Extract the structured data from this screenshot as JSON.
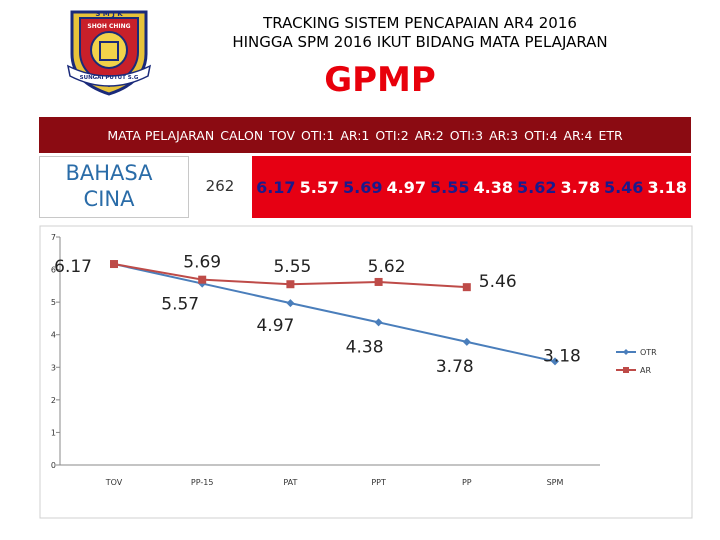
{
  "logo": {
    "top_text": "S M J K",
    "middle_text": "SHOH CHING",
    "bottom_text": "SUNGAI PUTUT S.G"
  },
  "header": {
    "title_line1": "TRACKING SISTEM PENCAPAIAN AR4 2016",
    "title_line2": "HINGGA SPM 2016 IKUT BIDANG MATA PELAJARAN",
    "subtitle": "GPMP"
  },
  "table": {
    "columns": [
      "MATA PELAJARAN",
      "CALON",
      "TOV",
      "OTI:1",
      "AR:1",
      "OTI:2",
      "AR:2",
      "OTI:3",
      "AR:3",
      "OTI:4",
      "AR:4",
      "ETR"
    ],
    "row": {
      "subject": "BAHASA CINA",
      "calon": "262",
      "values": [
        "6.17",
        "5.57",
        "5.69",
        "4.97",
        "5.55",
        "4.38",
        "5.62",
        "3.78",
        "5.46",
        "3.18"
      ],
      "value_colors": [
        "#1a1a8c",
        "#ffffff",
        "#1a1a8c",
        "#ffffff",
        "#1a1a8c",
        "#ffffff",
        "#1a1a8c",
        "#ffffff",
        "#1a1a8c",
        "#ffffff"
      ]
    }
  },
  "colors": {
    "header_bg": "#8b0b12",
    "values_bg": "#e60013",
    "gpmp": "#e8000b",
    "otr": "#4a7ebb",
    "ar": "#be4b48",
    "subject_text": "#2a6ca8"
  },
  "chart_data": {
    "type": "line",
    "categories": [
      "TOV",
      "PP-15",
      "PAT",
      "PPT",
      "PP",
      "SPM"
    ],
    "ylim": [
      0,
      7
    ],
    "yticks": [
      "0",
      "1",
      "2",
      "3",
      "4",
      "5",
      "6",
      "7"
    ],
    "grid": false,
    "legend_position": "right",
    "series": [
      {
        "name": "OTR",
        "color": "#4a7ebb",
        "marker": "diamond",
        "values": [
          6.17,
          5.57,
          4.97,
          4.38,
          3.78,
          3.18
        ],
        "labels": [
          "6.17",
          "5.57",
          "4.97",
          "4.38",
          "3.78",
          "3.18"
        ]
      },
      {
        "name": "AR",
        "color": "#be4b48",
        "marker": "square",
        "values": [
          6.17,
          5.69,
          5.55,
          5.62,
          5.46,
          null
        ],
        "labels": [
          "",
          "5.69",
          "5.55",
          "5.62",
          "5.46",
          ""
        ]
      }
    ]
  }
}
